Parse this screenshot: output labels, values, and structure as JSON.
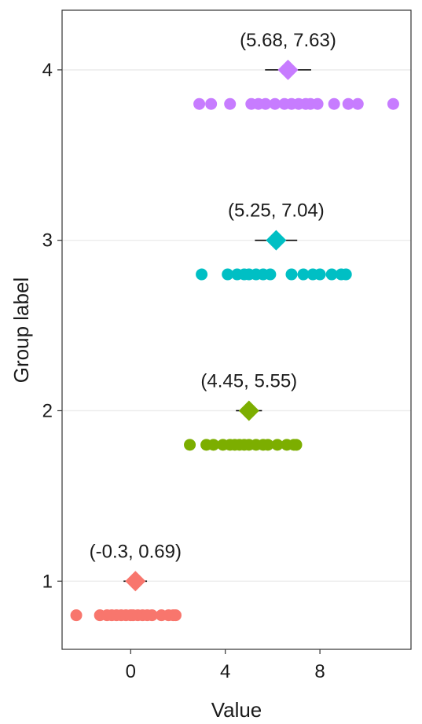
{
  "chart_data": {
    "type": "scatter",
    "xlabel": "Value",
    "ylabel": "Group label",
    "xlim": [
      -2.9,
      11.85
    ],
    "ylim": [
      0.6,
      4.35
    ],
    "x_ticks": [
      0,
      4,
      8
    ],
    "y_ticks": [
      1,
      2,
      3,
      4
    ],
    "grid": "horizontal major lines only",
    "legend": "none",
    "groups": [
      {
        "group": 1,
        "color": "#F8766D",
        "mean": 0.2,
        "ci": [
          -0.3,
          0.69
        ],
        "ci_label": "(-0.3, 0.69)",
        "points": [
          -2.3,
          -1.3,
          -1.0,
          -0.8,
          -0.6,
          -0.4,
          -0.2,
          0.0,
          0.1,
          0.3,
          0.5,
          0.7,
          0.9,
          1.3,
          1.6,
          1.8,
          1.9
        ]
      },
      {
        "group": 2,
        "color": "#7CAE00",
        "mean": 5.0,
        "ci": [
          4.45,
          5.55
        ],
        "ci_label": "(4.45, 5.55)",
        "points": [
          2.5,
          3.2,
          3.5,
          3.9,
          4.2,
          4.4,
          4.6,
          4.8,
          5.0,
          5.3,
          5.6,
          5.8,
          6.2,
          6.6,
          6.9,
          7.0
        ]
      },
      {
        "group": 3,
        "color": "#00BFC4",
        "mean": 6.15,
        "ci": [
          5.25,
          7.04
        ],
        "ci_label": "(5.25, 7.04)",
        "points": [
          3.0,
          4.1,
          4.5,
          4.8,
          5.0,
          5.3,
          5.6,
          5.9,
          6.8,
          7.3,
          7.7,
          8.0,
          8.5,
          8.9,
          9.1
        ]
      },
      {
        "group": 4,
        "color": "#C77CFF",
        "mean": 6.65,
        "ci": [
          5.68,
          7.63
        ],
        "ci_label": "(5.68, 7.63)",
        "points": [
          2.9,
          3.4,
          4.2,
          5.1,
          5.4,
          5.7,
          6.1,
          6.5,
          6.8,
          7.1,
          7.4,
          7.6,
          7.9,
          8.6,
          9.2,
          9.6,
          11.1
        ]
      }
    ]
  }
}
